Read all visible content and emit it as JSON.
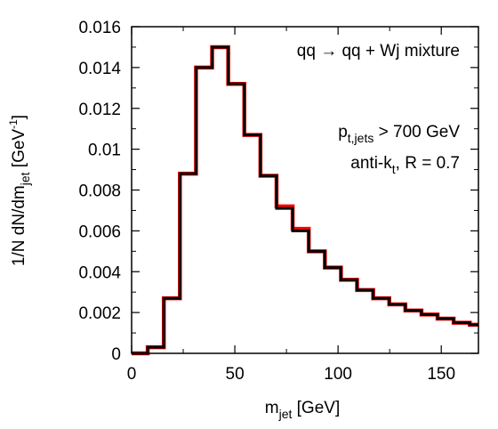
{
  "chart_data": {
    "type": "step-histogram",
    "xlabel": {
      "main": "m",
      "sub": "jet",
      "unit": " [GeV]"
    },
    "ylabel": {
      "prefix": "1/N dN/dm",
      "sub": "jet",
      "unit_open": " [GeV",
      "unit_sup": "-1",
      "unit_close": "]"
    },
    "xlim": [
      0,
      168
    ],
    "ylim": [
      0,
      0.016
    ],
    "xticks": [
      0,
      50,
      100,
      150
    ],
    "yticks": [
      0,
      0.002,
      0.004,
      0.006,
      0.008,
      0.01,
      0.012,
      0.014,
      0.016
    ],
    "ytick_labels": [
      "0",
      "0.002",
      "0.004",
      "0.006",
      "0.008",
      "0.01",
      "0.012",
      "0.014",
      "0.016"
    ],
    "bin_width": 7.8,
    "bin_edges_start": 0,
    "series": [
      {
        "color": "#000000",
        "values": [
          0.0,
          0.0003,
          0.0027,
          0.0088,
          0.014,
          0.015,
          0.0132,
          0.0107,
          0.0087,
          0.0071,
          0.006,
          0.005,
          0.0042,
          0.0036,
          0.0031,
          0.0027,
          0.0024,
          0.0021,
          0.0019,
          0.0017,
          0.0015,
          0.0014
        ]
      },
      {
        "color": "#ff0000",
        "values": [
          0.0,
          0.0003,
          0.0027,
          0.0088,
          0.014,
          0.015,
          0.0132,
          0.0107,
          0.0087,
          0.0072,
          0.0061,
          0.005,
          0.0042,
          0.0036,
          0.0031,
          0.0027,
          0.0024,
          0.0021,
          0.0019,
          0.0017,
          0.0015,
          0.0014
        ]
      }
    ],
    "annotations": {
      "process": "qq → qq + Wj mixture",
      "cut_main": "p",
      "cut_sub": "t,jets",
      "cut_rest": " > 700 GeV",
      "algo_main": "anti-k",
      "algo_sub": "t",
      "algo_rest": ", R = 0.7"
    }
  }
}
